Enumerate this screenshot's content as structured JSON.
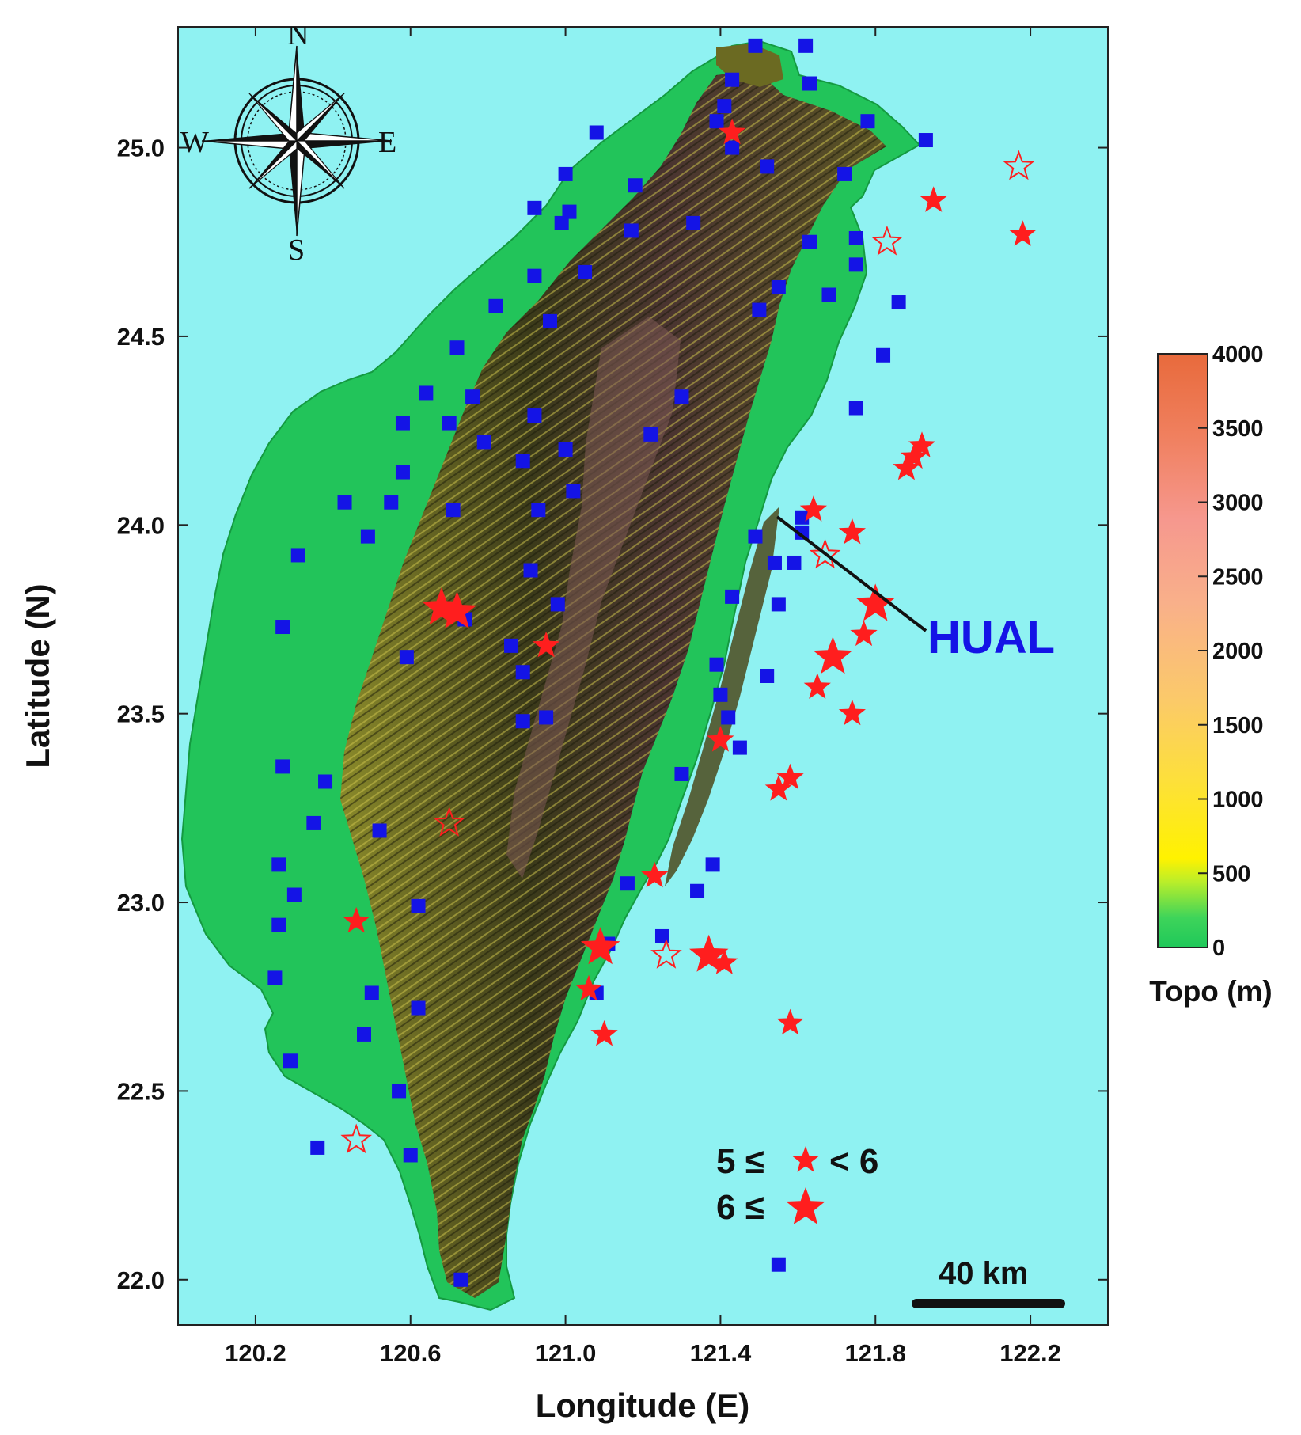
{
  "map": {
    "x_axis": {
      "title": "Longitude (E)",
      "ticks": [
        "120.2",
        "120.6",
        "121.0",
        "121.4",
        "121.8",
        "122.2"
      ],
      "range": [
        120.0,
        122.4
      ]
    },
    "y_axis": {
      "title": "Latitude (N)",
      "ticks": [
        "22.0",
        "22.5",
        "23.0",
        "23.5",
        "24.0",
        "24.5",
        "25.0"
      ],
      "range": [
        21.88,
        25.32
      ]
    },
    "colors": {
      "ocean": "#8ff2f2",
      "lowland": "#22c45a",
      "mountain_dark": "#2b2a14",
      "station": "#1414e6",
      "quake": "#ff1e1e",
      "label": "#1414e6"
    }
  },
  "compass": {
    "n": "N",
    "s": "S",
    "e": "E",
    "w": "W"
  },
  "colorbar": {
    "title": "Topo (m)",
    "ticks": [
      "0",
      "500",
      "1000",
      "1500",
      "2000",
      "2500",
      "3000",
      "3500",
      "4000"
    ],
    "range": [
      0,
      4000
    ]
  },
  "station_label": {
    "name": "HUAL",
    "lon": 121.61,
    "lat": 24.02
  },
  "scale_bar": {
    "label": "40 km"
  },
  "legend": {
    "row1_left": "5 ≤",
    "row1_right": "< 6",
    "row2_left": "6 ≤"
  },
  "stations": [
    [
      121.49,
      25.27
    ],
    [
      121.62,
      25.27
    ],
    [
      121.43,
      25.18
    ],
    [
      121.63,
      25.17
    ],
    [
      121.41,
      25.11
    ],
    [
      121.39,
      25.07
    ],
    [
      121.43,
      25.0
    ],
    [
      121.78,
      25.07
    ],
    [
      121.93,
      25.02
    ],
    [
      121.08,
      25.04
    ],
    [
      121.0,
      24.93
    ],
    [
      121.18,
      24.9
    ],
    [
      121.52,
      24.95
    ],
    [
      121.72,
      24.93
    ],
    [
      120.92,
      24.84
    ],
    [
      121.01,
      24.83
    ],
    [
      120.99,
      24.8
    ],
    [
      121.33,
      24.8
    ],
    [
      121.17,
      24.78
    ],
    [
      121.63,
      24.75
    ],
    [
      121.75,
      24.76
    ],
    [
      121.75,
      24.69
    ],
    [
      120.92,
      24.66
    ],
    [
      121.05,
      24.67
    ],
    [
      121.55,
      24.63
    ],
    [
      121.68,
      24.61
    ],
    [
      121.86,
      24.59
    ],
    [
      121.5,
      24.57
    ],
    [
      120.82,
      24.58
    ],
    [
      120.96,
      24.54
    ],
    [
      120.72,
      24.47
    ],
    [
      121.82,
      24.45
    ],
    [
      120.64,
      24.35
    ],
    [
      120.76,
      24.34
    ],
    [
      121.3,
      24.34
    ],
    [
      121.75,
      24.31
    ],
    [
      120.92,
      24.29
    ],
    [
      120.58,
      24.27
    ],
    [
      120.7,
      24.27
    ],
    [
      121.22,
      24.24
    ],
    [
      120.79,
      24.22
    ],
    [
      121.0,
      24.2
    ],
    [
      120.89,
      24.17
    ],
    [
      120.58,
      24.14
    ],
    [
      121.02,
      24.09
    ],
    [
      120.43,
      24.06
    ],
    [
      120.55,
      24.06
    ],
    [
      120.71,
      24.04
    ],
    [
      120.93,
      24.04
    ],
    [
      121.61,
      24.02
    ],
    [
      121.61,
      23.98
    ],
    [
      121.49,
      23.97
    ],
    [
      120.49,
      23.97
    ],
    [
      120.31,
      23.92
    ],
    [
      121.54,
      23.9
    ],
    [
      121.59,
      23.9
    ],
    [
      120.91,
      23.88
    ],
    [
      121.43,
      23.81
    ],
    [
      121.55,
      23.79
    ],
    [
      120.98,
      23.79
    ],
    [
      120.74,
      23.75
    ],
    [
      120.27,
      23.73
    ],
    [
      120.86,
      23.68
    ],
    [
      120.59,
      23.65
    ],
    [
      121.39,
      23.63
    ],
    [
      120.89,
      23.61
    ],
    [
      121.52,
      23.6
    ],
    [
      121.4,
      23.55
    ],
    [
      121.42,
      23.49
    ],
    [
      120.89,
      23.48
    ],
    [
      120.95,
      23.49
    ],
    [
      121.45,
      23.41
    ],
    [
      121.3,
      23.34
    ],
    [
      120.27,
      23.36
    ],
    [
      120.38,
      23.32
    ],
    [
      120.35,
      23.21
    ],
    [
      120.52,
      23.19
    ],
    [
      121.38,
      23.1
    ],
    [
      120.26,
      23.1
    ],
    [
      121.16,
      23.05
    ],
    [
      121.34,
      23.03
    ],
    [
      120.3,
      23.02
    ],
    [
      120.62,
      22.99
    ],
    [
      120.26,
      22.94
    ],
    [
      121.25,
      22.91
    ],
    [
      121.11,
      22.89
    ],
    [
      120.25,
      22.8
    ],
    [
      121.08,
      22.76
    ],
    [
      120.5,
      22.76
    ],
    [
      120.62,
      22.72
    ],
    [
      120.48,
      22.65
    ],
    [
      120.29,
      22.58
    ],
    [
      120.57,
      22.5
    ],
    [
      120.36,
      22.35
    ],
    [
      120.6,
      22.33
    ],
    [
      121.55,
      22.04
    ],
    [
      120.73,
      22.0
    ]
  ],
  "quakes_large": [
    [
      121.43,
      25.04,
      0
    ],
    [
      120.68,
      23.78,
      1
    ],
    [
      120.72,
      23.77,
      1
    ],
    [
      121.95,
      24.86,
      0
    ],
    [
      122.18,
      24.77,
      0
    ],
    [
      121.92,
      24.21,
      0
    ],
    [
      121.9,
      24.18,
      0
    ],
    [
      121.88,
      24.15,
      0
    ],
    [
      121.64,
      24.04,
      0
    ],
    [
      121.74,
      23.98,
      0
    ],
    [
      121.8,
      23.79,
      1
    ],
    [
      121.77,
      23.71,
      0
    ],
    [
      121.69,
      23.65,
      1
    ],
    [
      121.65,
      23.57,
      0
    ],
    [
      121.74,
      23.5,
      0
    ],
    [
      120.95,
      23.68,
      0
    ],
    [
      121.4,
      23.43,
      0
    ],
    [
      121.58,
      23.33,
      0
    ],
    [
      121.55,
      23.3,
      0
    ],
    [
      121.23,
      23.07,
      0
    ],
    [
      120.46,
      22.95,
      0
    ],
    [
      121.09,
      22.88,
      1
    ],
    [
      121.37,
      22.86,
      1
    ],
    [
      121.41,
      22.84,
      0
    ],
    [
      121.06,
      22.77,
      0
    ],
    [
      121.1,
      22.65,
      0
    ],
    [
      121.58,
      22.68,
      0
    ]
  ],
  "quakes_hollow": [
    [
      122.17,
      24.95
    ],
    [
      121.83,
      24.75
    ],
    [
      121.67,
      23.92
    ],
    [
      120.7,
      23.21
    ],
    [
      121.26,
      22.86
    ],
    [
      120.46,
      22.37
    ]
  ]
}
